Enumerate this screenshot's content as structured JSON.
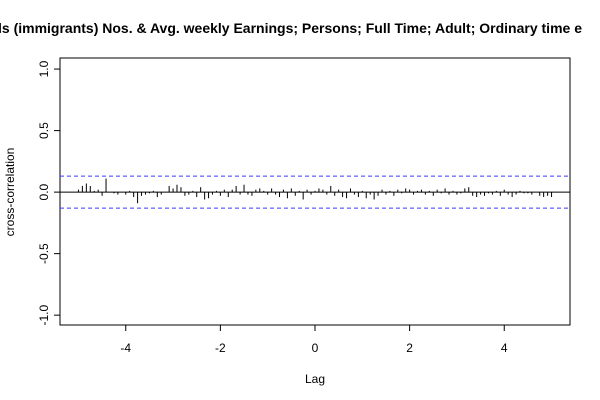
{
  "chart_data": {
    "type": "ccf",
    "title": "ls (immigrants) Nos. & Avg. weekly Earnings; Persons; Full Time; Adult; Ordinary time e",
    "xlabel": "Lag",
    "ylabel": "cross-correlation",
    "xlim": [
      -5.39,
      5.39
    ],
    "ylim": [
      -1.08,
      1.09
    ],
    "xticks": [
      -4,
      -2,
      0,
      2,
      4
    ],
    "yticks": [
      {
        "value": -1,
        "label": "-1.0"
      },
      {
        "value": -0.5,
        "label": "-0.5"
      },
      {
        "value": 0,
        "label": "0.0"
      },
      {
        "value": 0.5,
        "label": "0.5"
      },
      {
        "value": 1,
        "label": "1.0"
      }
    ],
    "ci": 0.13,
    "ci_color": "#3b3bff",
    "color": "#000000",
    "x": [
      -5,
      -4.917,
      -4.833,
      -4.75,
      -4.667,
      -4.583,
      -4.5,
      -4.417,
      -4.333,
      -4.25,
      -4.167,
      -4.083,
      -4,
      -3.917,
      -3.833,
      -3.75,
      -3.667,
      -3.583,
      -3.5,
      -3.417,
      -3.333,
      -3.25,
      -3.167,
      -3.083,
      -3,
      -2.917,
      -2.833,
      -2.75,
      -2.667,
      -2.583,
      -2.5,
      -2.417,
      -2.333,
      -2.25,
      -2.167,
      -2.083,
      -2,
      -1.917,
      -1.833,
      -1.75,
      -1.667,
      -1.583,
      -1.5,
      -1.417,
      -1.333,
      -1.25,
      -1.167,
      -1.083,
      -1,
      -0.917,
      -0.833,
      -0.75,
      -0.667,
      -0.583,
      -0.5,
      -0.417,
      -0.333,
      -0.25,
      -0.167,
      -0.083,
      0,
      0.083,
      0.167,
      0.25,
      0.333,
      0.417,
      0.5,
      0.583,
      0.667,
      0.75,
      0.833,
      0.917,
      1,
      1.083,
      1.167,
      1.25,
      1.333,
      1.417,
      1.5,
      1.583,
      1.667,
      1.75,
      1.833,
      1.917,
      2,
      2.083,
      2.167,
      2.25,
      2.333,
      2.417,
      2.5,
      2.583,
      2.667,
      2.75,
      2.833,
      2.917,
      3,
      3.083,
      3.167,
      3.25,
      3.333,
      3.417,
      3.5,
      3.583,
      3.667,
      3.75,
      3.833,
      3.917,
      4,
      4.083,
      4.167,
      4.25,
      4.333,
      4.417,
      4.5,
      4.583,
      4.667,
      4.75,
      4.833,
      4.917,
      5
    ],
    "values": [
      0.02,
      0.05,
      0.07,
      0.05,
      0.01,
      0.02,
      -0.03,
      0.11,
      0,
      -0.01,
      -0.02,
      0,
      -0.02,
      0.01,
      -0.04,
      -0.09,
      -0.03,
      -0.02,
      -0.01,
      0.01,
      -0.04,
      -0.02,
      0,
      0.05,
      0.03,
      0.06,
      0.04,
      -0.03,
      -0.02,
      0.01,
      -0.04,
      0.04,
      -0.06,
      -0.05,
      -0.02,
      0.01,
      -0.03,
      0.02,
      -0.04,
      0.02,
      0.05,
      -0.02,
      0.06,
      -0.02,
      -0.03,
      0.02,
      0.03,
      0.01,
      -0.02,
      0.03,
      -0.02,
      -0.04,
      0.02,
      -0.05,
      0.03,
      -0.03,
      0.01,
      -0.06,
      0.02,
      -0.02,
      0.01,
      0.03,
      0.02,
      -0.02,
      0.05,
      -0.03,
      0.02,
      -0.04,
      -0.05,
      0.03,
      -0.02,
      -0.04,
      0.01,
      -0.05,
      -0.02,
      -0.06,
      -0.03,
      0.02,
      -0.02,
      0.01,
      -0.03,
      0.02,
      -0.01,
      0.03,
      0.02,
      -0.02,
      0.01,
      0.02,
      -0.02,
      0.01,
      -0.03,
      0.02,
      -0.01,
      0.03,
      -0.02,
      0.01,
      -0.02,
      -0.01,
      0.03,
      0.04,
      -0.03,
      -0.04,
      -0.02,
      -0.03,
      -0.01,
      -0.02,
      0.01,
      -0.03,
      0.02,
      -0.02,
      -0.04,
      -0.02,
      0.01,
      -0.01,
      -0.01,
      -0.02,
      0,
      -0.03,
      -0.04,
      -0.03,
      -0.04
    ]
  }
}
